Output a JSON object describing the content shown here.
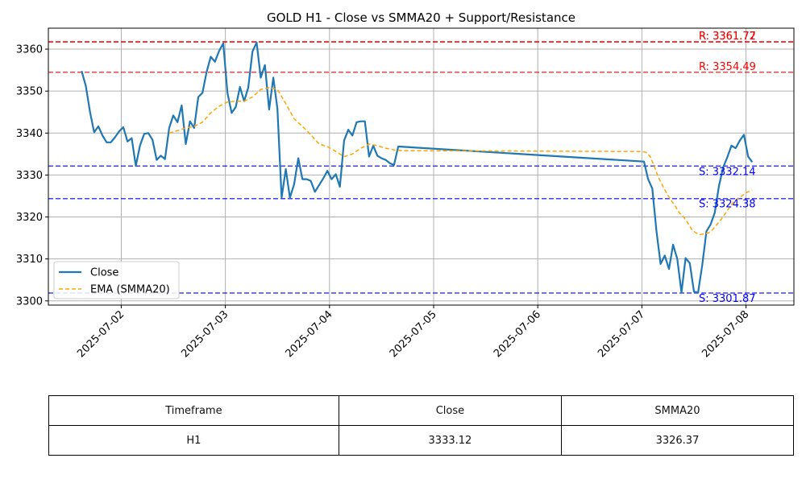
{
  "chart_data": {
    "type": "line",
    "title": "GOLD H1 - Close vs SMMA20 + Support/Resistance",
    "xlabel": "",
    "ylabel": "",
    "ylim": [
      3299,
      3365
    ],
    "yticks": [
      3300,
      3310,
      3320,
      3330,
      3340,
      3350,
      3360
    ],
    "xticks": [
      "2025-07-02",
      "2025-07-03",
      "2025-07-04",
      "2025-07-05",
      "2025-07-06",
      "2025-07-07",
      "2025-07-08"
    ],
    "grid": true,
    "legend_position": "lower-left",
    "series": [
      {
        "name": "Close",
        "color": "#1f77b4",
        "style": "solid",
        "points": [
          [
            1.62,
            3354.8
          ],
          [
            1.66,
            3351.2
          ],
          [
            1.7,
            3345.0
          ],
          [
            1.74,
            3340.2
          ],
          [
            1.78,
            3341.6
          ],
          [
            1.82,
            3339.4
          ],
          [
            1.86,
            3337.8
          ],
          [
            1.9,
            3337.8
          ],
          [
            1.94,
            3339.0
          ],
          [
            1.98,
            3340.4
          ],
          [
            2.02,
            3341.4
          ],
          [
            2.06,
            3338.0
          ],
          [
            2.1,
            3338.8
          ],
          [
            2.14,
            3332.2
          ],
          [
            2.18,
            3337.0
          ],
          [
            2.22,
            3339.8
          ],
          [
            2.26,
            3340.0
          ],
          [
            2.3,
            3338.4
          ],
          [
            2.34,
            3333.6
          ],
          [
            2.38,
            3334.6
          ],
          [
            2.42,
            3333.8
          ],
          [
            2.46,
            3341.2
          ],
          [
            2.5,
            3344.2
          ],
          [
            2.54,
            3342.6
          ],
          [
            2.58,
            3346.6
          ],
          [
            2.62,
            3337.4
          ],
          [
            2.66,
            3342.8
          ],
          [
            2.7,
            3341.2
          ],
          [
            2.74,
            3348.6
          ],
          [
            2.78,
            3349.6
          ],
          [
            2.82,
            3354.6
          ],
          [
            2.86,
            3358.2
          ],
          [
            2.9,
            3357.0
          ],
          [
            2.94,
            3359.6
          ],
          [
            2.98,
            3361.4
          ],
          [
            3.02,
            3349.6
          ],
          [
            3.06,
            3344.8
          ],
          [
            3.1,
            3346.2
          ],
          [
            3.14,
            3351.0
          ],
          [
            3.18,
            3347.6
          ],
          [
            3.22,
            3350.8
          ],
          [
            3.26,
            3359.4
          ],
          [
            3.3,
            3361.6
          ],
          [
            3.34,
            3353.2
          ],
          [
            3.38,
            3356.2
          ],
          [
            3.42,
            3345.6
          ],
          [
            3.46,
            3353.2
          ],
          [
            3.5,
            3345.8
          ],
          [
            3.54,
            3324.6
          ],
          [
            3.58,
            3331.4
          ],
          [
            3.62,
            3324.6
          ],
          [
            3.66,
            3327.8
          ],
          [
            3.7,
            3334.0
          ],
          [
            3.74,
            3329.0
          ],
          [
            3.78,
            3329.0
          ],
          [
            3.82,
            3328.6
          ],
          [
            3.86,
            3326.0
          ],
          [
            3.9,
            3327.6
          ],
          [
            3.94,
            3329.2
          ],
          [
            3.98,
            3331.0
          ],
          [
            4.02,
            3329.0
          ],
          [
            4.06,
            3330.2
          ],
          [
            4.1,
            3327.2
          ],
          [
            4.14,
            3338.2
          ],
          [
            4.18,
            3340.8
          ],
          [
            4.22,
            3339.4
          ],
          [
            4.26,
            3342.6
          ],
          [
            4.3,
            3342.8
          ],
          [
            4.34,
            3342.8
          ],
          [
            4.38,
            3334.4
          ],
          [
            4.42,
            3337.0
          ],
          [
            4.46,
            3334.6
          ],
          [
            4.5,
            3334.0
          ],
          [
            4.54,
            3333.6
          ],
          [
            4.58,
            3332.8
          ],
          [
            4.62,
            3332.4
          ],
          [
            4.66,
            3336.8
          ],
          [
            7.02,
            3333.2
          ],
          [
            7.06,
            3329.0
          ],
          [
            7.1,
            3326.8
          ],
          [
            7.14,
            3316.6
          ],
          [
            7.18,
            3308.8
          ],
          [
            7.22,
            3310.8
          ],
          [
            7.26,
            3307.6
          ],
          [
            7.3,
            3313.4
          ],
          [
            7.34,
            3310.0
          ],
          [
            7.38,
            3302.0
          ],
          [
            7.42,
            3310.2
          ],
          [
            7.46,
            3309.0
          ],
          [
            7.5,
            3302.2
          ],
          [
            7.54,
            3302.0
          ],
          [
            7.58,
            3308.6
          ],
          [
            7.62,
            3316.6
          ],
          [
            7.66,
            3318.2
          ],
          [
            7.7,
            3321.0
          ],
          [
            7.74,
            3327.4
          ],
          [
            7.78,
            3331.8
          ],
          [
            7.82,
            3334.2
          ],
          [
            7.86,
            3337.0
          ],
          [
            7.9,
            3336.4
          ],
          [
            7.94,
            3338.2
          ],
          [
            7.98,
            3339.6
          ],
          [
            8.02,
            3334.4
          ],
          [
            8.06,
            3333.1
          ]
        ]
      },
      {
        "name": "EMA (SMMA20)",
        "color": "#ffa500",
        "style": "dashed",
        "points": [
          [
            2.46,
            3340.0
          ],
          [
            2.54,
            3340.6
          ],
          [
            2.62,
            3341.2
          ],
          [
            2.7,
            3341.6
          ],
          [
            2.78,
            3342.6
          ],
          [
            2.86,
            3344.8
          ],
          [
            2.94,
            3346.4
          ],
          [
            3.02,
            3347.4
          ],
          [
            3.1,
            3347.6
          ],
          [
            3.18,
            3347.6
          ],
          [
            3.26,
            3348.6
          ],
          [
            3.34,
            3350.4
          ],
          [
            3.42,
            3350.8
          ],
          [
            3.5,
            3350.4
          ],
          [
            3.58,
            3347.0
          ],
          [
            3.66,
            3343.4
          ],
          [
            3.74,
            3341.6
          ],
          [
            3.82,
            3339.6
          ],
          [
            3.9,
            3337.4
          ],
          [
            3.98,
            3336.8
          ],
          [
            4.06,
            3335.6
          ],
          [
            4.14,
            3334.4
          ],
          [
            4.22,
            3335.0
          ],
          [
            4.3,
            3336.4
          ],
          [
            4.38,
            3337.4
          ],
          [
            4.46,
            3337.0
          ],
          [
            4.54,
            3336.4
          ],
          [
            4.62,
            3336.0
          ],
          [
            4.7,
            3335.8
          ],
          [
            7.0,
            3335.6
          ],
          [
            7.04,
            3335.4
          ],
          [
            7.08,
            3334.4
          ],
          [
            7.12,
            3332.0
          ],
          [
            7.16,
            3329.4
          ],
          [
            7.2,
            3327.4
          ],
          [
            7.24,
            3325.6
          ],
          [
            7.28,
            3324.0
          ],
          [
            7.32,
            3322.6
          ],
          [
            7.36,
            3321.0
          ],
          [
            7.4,
            3320.0
          ],
          [
            7.44,
            3318.6
          ],
          [
            7.48,
            3317.0
          ],
          [
            7.52,
            3316.2
          ],
          [
            7.56,
            3315.8
          ],
          [
            7.6,
            3316.0
          ],
          [
            7.64,
            3316.2
          ],
          [
            7.68,
            3317.0
          ],
          [
            7.72,
            3318.2
          ],
          [
            7.76,
            3319.4
          ],
          [
            7.8,
            3320.8
          ],
          [
            7.84,
            3322.2
          ],
          [
            7.88,
            3323.6
          ],
          [
            7.92,
            3324.4
          ],
          [
            7.96,
            3325.0
          ],
          [
            8.0,
            3325.8
          ],
          [
            8.06,
            3326.4
          ]
        ]
      }
    ],
    "levels": [
      {
        "kind": "resistance",
        "value": 3361.77,
        "label": "R: 3361.77",
        "color": "#ff0000"
      },
      {
        "kind": "resistance",
        "value": 3361.72,
        "label": "R: 3361.72",
        "color": "#ff0000"
      },
      {
        "kind": "resistance",
        "value": 3354.49,
        "label": "R: 3354.49",
        "color": "#ff0000"
      },
      {
        "kind": "support",
        "value": 3332.14,
        "label": "S: 3332.14",
        "color": "#0000ff"
      },
      {
        "kind": "support",
        "value": 3324.38,
        "label": "S: 3324.38",
        "color": "#0000ff"
      },
      {
        "kind": "support",
        "value": 3301.87,
        "label": "S: 3301.87",
        "color": "#0000ff"
      }
    ]
  },
  "table": {
    "headers": [
      "Timeframe",
      "Close",
      "SMMA20"
    ],
    "rows": [
      [
        "H1",
        "3333.12",
        "3326.37"
      ]
    ]
  }
}
